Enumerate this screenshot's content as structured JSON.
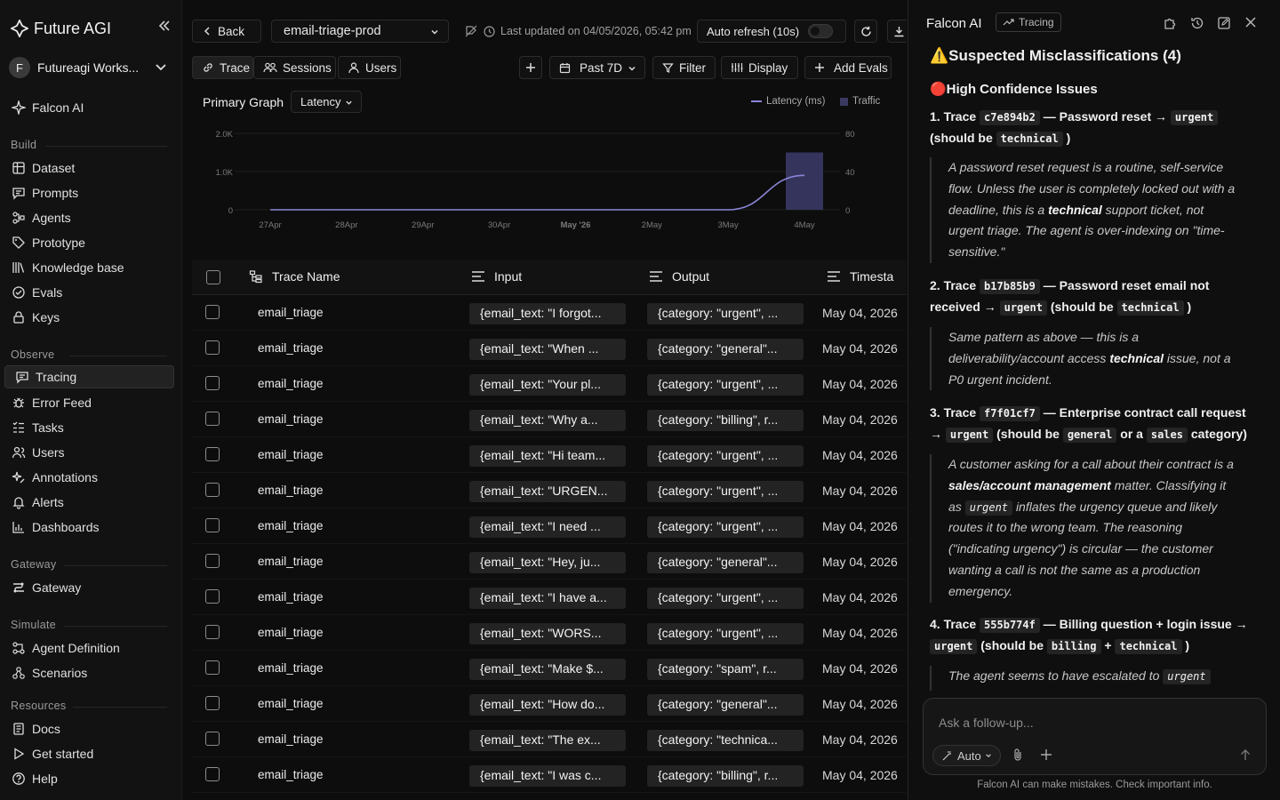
{
  "app": {
    "brand": "Future AGI",
    "workspace_initial": "F",
    "workspace": "Futureagi Works...",
    "falcon": "Falcon AI"
  },
  "sidebar": {
    "build_title": "Build",
    "build": [
      "Dataset",
      "Prompts",
      "Agents",
      "Prototype",
      "Knowledge base",
      "Evals",
      "Keys"
    ],
    "observe_title": "Observe",
    "observe": [
      "Tracing",
      "Error Feed",
      "Tasks",
      "Users",
      "Annotations",
      "Alerts",
      "Dashboards"
    ],
    "gateway_title": "Gateway",
    "gateway": [
      "Gateway"
    ],
    "simulate_title": "Simulate",
    "simulate": [
      "Agent Definition",
      "Scenarios"
    ],
    "resources_title": "Resources",
    "resources": [
      "Docs",
      "Get started",
      "Help"
    ]
  },
  "toolbar": {
    "back": "Back",
    "project": "email-triage-prod",
    "last_updated": "Last updated on 04/05/2026, 05:42 pm",
    "auto_refresh": "Auto refresh (10s)",
    "auto_refresh_on": false,
    "tabs": [
      "Trace",
      "Sessions",
      "Users"
    ],
    "range": "Past 7D",
    "filter": "Filter",
    "display": "Display",
    "add_evals": "Add Evals"
  },
  "graph": {
    "title": "Primary Graph",
    "metric": "Latency",
    "legend_latency": "Latency (ms)",
    "legend_traffic": "Traffic",
    "left_ticks": [
      "2.0K",
      "1.0K",
      "0"
    ],
    "right_ticks": [
      "80",
      "40",
      "0"
    ],
    "x_labels": [
      "27Apr",
      "28Apr",
      "29Apr",
      "30Apr",
      "May '26",
      "2May",
      "3May",
      "4May"
    ]
  },
  "chart_data": {
    "type": "line",
    "categories": [
      "27Apr",
      "28Apr",
      "29Apr",
      "30Apr",
      "May '26",
      "2May",
      "3May",
      "4May"
    ],
    "series": [
      {
        "name": "Latency (ms)",
        "axis": "left",
        "values": [
          0,
          0,
          0,
          0,
          0,
          0,
          0,
          900
        ]
      },
      {
        "name": "Traffic",
        "axis": "right",
        "type": "bar",
        "values": [
          0,
          0,
          0,
          0,
          0,
          0,
          0,
          60
        ]
      }
    ],
    "ylim_left": [
      0,
      2000
    ],
    "ylim_right": [
      0,
      80
    ],
    "colors": {
      "latency": "#8b86d9",
      "traffic": "#35345c"
    }
  },
  "table": {
    "headers": {
      "name": "Trace Name",
      "input": "Input",
      "output": "Output",
      "timestamp": "Timesta"
    },
    "rows": [
      {
        "name": "email_triage",
        "input": "{email_text: \"I forgot...",
        "output": "{category: \"urgent\", ...",
        "ts": "May 04, 2026"
      },
      {
        "name": "email_triage",
        "input": "{email_text: \"When ...",
        "output": "{category: \"general\"...",
        "ts": "May 04, 2026"
      },
      {
        "name": "email_triage",
        "input": "{email_text: \"Your pl...",
        "output": "{category: \"urgent\", ...",
        "ts": "May 04, 2026"
      },
      {
        "name": "email_triage",
        "input": "{email_text: \"Why a...",
        "output": "{category: \"billing\", r...",
        "ts": "May 04, 2026"
      },
      {
        "name": "email_triage",
        "input": "{email_text: \"Hi team...",
        "output": "{category: \"urgent\", ...",
        "ts": "May 04, 2026"
      },
      {
        "name": "email_triage",
        "input": "{email_text: \"URGEN...",
        "output": "{category: \"urgent\", ...",
        "ts": "May 04, 2026"
      },
      {
        "name": "email_triage",
        "input": "{email_text: \"I need ...",
        "output": "{category: \"urgent\", ...",
        "ts": "May 04, 2026"
      },
      {
        "name": "email_triage",
        "input": "{email_text: \"Hey, ju...",
        "output": "{category: \"general\"...",
        "ts": "May 04, 2026"
      },
      {
        "name": "email_triage",
        "input": "{email_text: \"I have a...",
        "output": "{category: \"urgent\", ...",
        "ts": "May 04, 2026"
      },
      {
        "name": "email_triage",
        "input": "{email_text: \"WORS...",
        "output": "{category: \"urgent\", ...",
        "ts": "May 04, 2026"
      },
      {
        "name": "email_triage",
        "input": "{email_text: \"Make $...",
        "output": "{category: \"spam\", r...",
        "ts": "May 04, 2026"
      },
      {
        "name": "email_triage",
        "input": "{email_text: \"How do...",
        "output": "{category: \"general\"...",
        "ts": "May 04, 2026"
      },
      {
        "name": "email_triage",
        "input": "{email_text: \"The ex...",
        "output": "{category: \"technica...",
        "ts": "May 04, 2026"
      },
      {
        "name": "email_triage",
        "input": "{email_text: \"I was c...",
        "output": "{category: \"billing\", r...",
        "ts": "May 04, 2026"
      }
    ]
  },
  "panel": {
    "title": "Falcon AI",
    "badge": "Tracing",
    "heading": "⚠️Suspected Misclassifications (4)",
    "subheading": "🔴High Confidence Issues",
    "item1": {
      "num": "1. Trace",
      "id": "c7e894b2",
      "desc": "— Password reset →",
      "label": "urgent",
      "should": "(should be",
      "target": "technical",
      "close": ")"
    },
    "quote1": {
      "a": "A password reset request is a routine, self-service flow. Unless the user is completely locked out with a deadline, this is a",
      "b": "technical",
      "c": "support ticket, not urgent triage. The agent is over-indexing on \"time-sensitive.\""
    },
    "item2": {
      "num": "2. Trace",
      "id": "b17b85b9",
      "desc": "— Password reset email not received →",
      "label": "urgent",
      "should": "(should be",
      "target": "technical",
      "close": ")"
    },
    "quote2": {
      "a": "Same pattern as above — this is a deliverability/account access",
      "b": "technical",
      "c": "issue, not a P0 urgent incident."
    },
    "item3": {
      "num": "3. Trace",
      "id": "f7f01cf7",
      "desc": "— Enterprise contract call request →",
      "label": "urgent",
      "should": "(should be",
      "target": "general",
      "or": "or a",
      "target2": "sales",
      "close": "category)"
    },
    "quote3": {
      "a": "A customer asking for a call about their contract is a",
      "b": "sales/account management",
      "c": "matter. Classifying it as",
      "code": "urgent",
      "d": "inflates the urgency queue and likely routes it to the wrong team. The reasoning (\"indicating urgency\") is circular — the customer wanting a call is not the same as a production emergency."
    },
    "item4": {
      "num": "4. Trace",
      "id": "555b774f",
      "desc": "— Billing question + login issue →",
      "label": "urgent",
      "should": "(should be",
      "target": "billing",
      "plus": "+",
      "target2": "technical",
      "close": ")"
    },
    "quote4": {
      "a": "The agent seems to have escalated to",
      "code": "urgent"
    },
    "composer_placeholder": "Ask a follow-up...",
    "mode": "Auto",
    "disclaimer": "Falcon AI can make mistakes. Check important info."
  }
}
